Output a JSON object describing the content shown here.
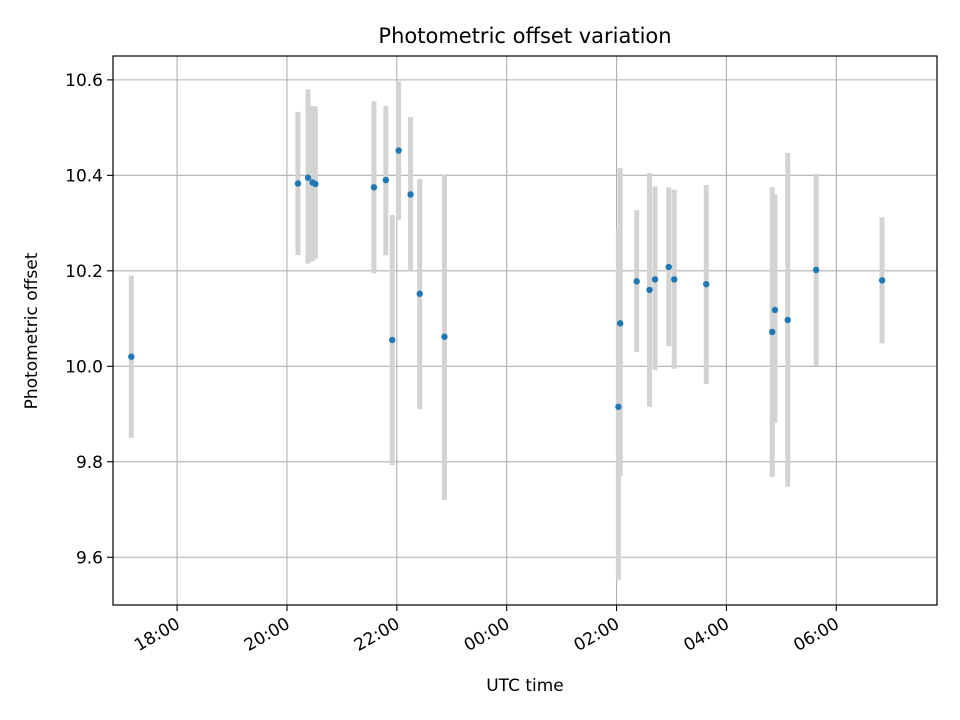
{
  "chart_data": {
    "type": "scatter",
    "title": "Photometric offset variation",
    "xlabel": "UTC time",
    "ylabel": "Photometric offset",
    "x_axis": {
      "kind": "datetime",
      "range": [
        "2023-01-01T16:50",
        "2023-01-02T07:50"
      ],
      "ticks": [
        {
          "value": "2023-01-01T18:00",
          "label": "18:00"
        },
        {
          "value": "2023-01-01T20:00",
          "label": "20:00"
        },
        {
          "value": "2023-01-01T22:00",
          "label": "22:00"
        },
        {
          "value": "2023-01-02T00:00",
          "label": "00:00"
        },
        {
          "value": "2023-01-02T02:00",
          "label": "02:00"
        },
        {
          "value": "2023-01-02T04:00",
          "label": "04:00"
        },
        {
          "value": "2023-01-02T06:00",
          "label": "06:00"
        }
      ],
      "tick_label_rotation_deg": 30
    },
    "y_axis": {
      "range": [
        9.5,
        10.65
      ],
      "ticks": [
        {
          "value": 9.6,
          "label": "9.6"
        },
        {
          "value": 9.8,
          "label": "9.8"
        },
        {
          "value": 10.0,
          "label": "10.0"
        },
        {
          "value": 10.2,
          "label": "10.2"
        },
        {
          "value": 10.4,
          "label": "10.4"
        },
        {
          "value": 10.6,
          "label": "10.6"
        }
      ]
    },
    "grid": true,
    "colors": {
      "point": "#1f77b4",
      "errorbar": "#d3d3d3",
      "grid": "#b0b0b0",
      "axis": "#000000"
    },
    "points": [
      {
        "x": "2023-01-01T17:10",
        "y": 10.02,
        "ylo": 9.85,
        "yhi": 10.19
      },
      {
        "x": "2023-01-01T20:12",
        "y": 10.383,
        "ylo": 10.233,
        "yhi": 10.533
      },
      {
        "x": "2023-01-01T20:23",
        "y": 10.395,
        "ylo": 10.215,
        "yhi": 10.58
      },
      {
        "x": "2023-01-01T20:28",
        "y": 10.385,
        "ylo": 10.22,
        "yhi": 10.545
      },
      {
        "x": "2023-01-01T20:31",
        "y": 10.382,
        "ylo": 10.225,
        "yhi": 10.545
      },
      {
        "x": "2023-01-01T21:35",
        "y": 10.375,
        "ylo": 10.195,
        "yhi": 10.555
      },
      {
        "x": "2023-01-01T21:48",
        "y": 10.39,
        "ylo": 10.232,
        "yhi": 10.545
      },
      {
        "x": "2023-01-01T21:55",
        "y": 10.055,
        "ylo": 9.793,
        "yhi": 10.317
      },
      {
        "x": "2023-01-01T22:02",
        "y": 10.452,
        "ylo": 10.307,
        "yhi": 10.597
      },
      {
        "x": "2023-01-01T22:15",
        "y": 10.36,
        "ylo": 10.2,
        "yhi": 10.522
      },
      {
        "x": "2023-01-01T22:25",
        "y": 10.152,
        "ylo": 9.91,
        "yhi": 10.392
      },
      {
        "x": "2023-01-01T22:52",
        "y": 10.062,
        "ylo": 9.72,
        "yhi": 10.402
      },
      {
        "x": "2023-01-02T02:02",
        "y": 9.915,
        "ylo": 9.553,
        "yhi": 10.285
      },
      {
        "x": "2023-01-02T02:04",
        "y": 10.09,
        "ylo": 9.77,
        "yhi": 10.415
      },
      {
        "x": "2023-01-02T02:22",
        "y": 10.178,
        "ylo": 10.03,
        "yhi": 10.327
      },
      {
        "x": "2023-01-02T02:36",
        "y": 10.16,
        "ylo": 9.915,
        "yhi": 10.405
      },
      {
        "x": "2023-01-02T02:42",
        "y": 10.182,
        "ylo": 9.992,
        "yhi": 10.377
      },
      {
        "x": "2023-01-02T02:57",
        "y": 10.208,
        "ylo": 10.042,
        "yhi": 10.375
      },
      {
        "x": "2023-01-02T03:03",
        "y": 10.182,
        "ylo": 9.995,
        "yhi": 10.37
      },
      {
        "x": "2023-01-02T03:38",
        "y": 10.172,
        "ylo": 9.963,
        "yhi": 10.38
      },
      {
        "x": "2023-01-02T04:50",
        "y": 10.072,
        "ylo": 9.768,
        "yhi": 10.375
      },
      {
        "x": "2023-01-02T04:53",
        "y": 10.118,
        "ylo": 9.882,
        "yhi": 10.36
      },
      {
        "x": "2023-01-02T05:07",
        "y": 10.097,
        "ylo": 9.748,
        "yhi": 10.447
      },
      {
        "x": "2023-01-02T05:38",
        "y": 10.202,
        "ylo": 10.0,
        "yhi": 10.403
      },
      {
        "x": "2023-01-02T06:50",
        "y": 10.18,
        "ylo": 10.048,
        "yhi": 10.312
      }
    ]
  }
}
